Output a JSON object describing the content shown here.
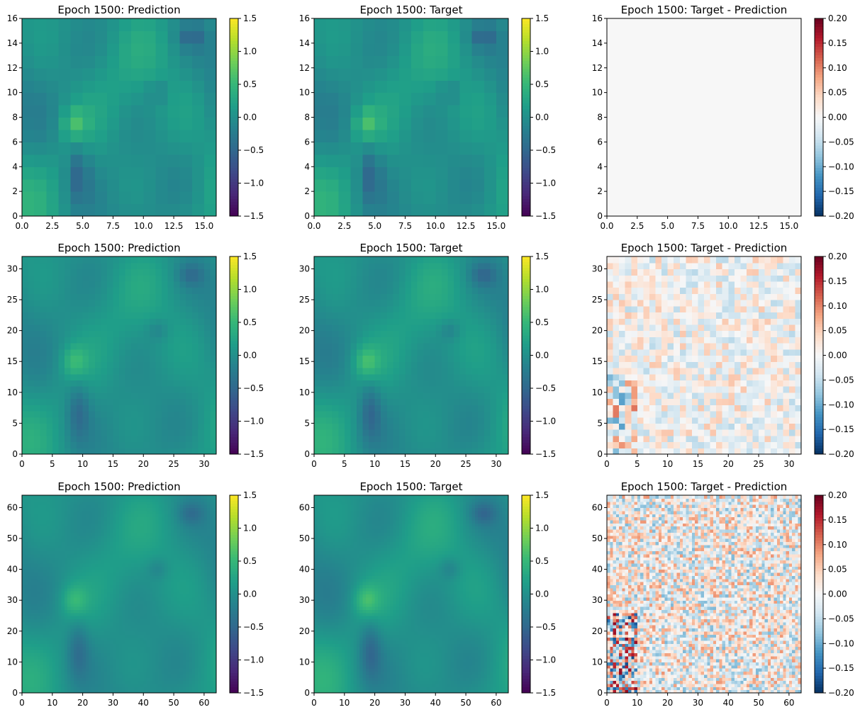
{
  "figure": {
    "colormaps": {
      "viridis": [
        "#440154",
        "#482878",
        "#3e4a89",
        "#31688e",
        "#26828e",
        "#1f9e89",
        "#35b779",
        "#6ece58",
        "#b5de2b",
        "#fde725"
      ],
      "rdbu_r": [
        "#053061",
        "#2166ac",
        "#4393c3",
        "#92c5de",
        "#d1e5f0",
        "#f7f7f7",
        "#fddbc7",
        "#f4a582",
        "#d6604d",
        "#b2182b",
        "#67001f"
      ]
    }
  },
  "chart_data": [
    {
      "type": "heatmap",
      "title": "Epoch 1500: Prediction",
      "grid_size": 16,
      "xlim": [
        0,
        16
      ],
      "ylim": [
        0,
        16
      ],
      "xticks": [
        "0.0",
        "2.5",
        "5.0",
        "7.5",
        "10.0",
        "12.5",
        "15.0"
      ],
      "xtick_values": [
        0,
        2.5,
        5,
        7.5,
        10,
        12.5,
        15
      ],
      "yticks": [
        "0",
        "2",
        "4",
        "6",
        "8",
        "10",
        "12",
        "14",
        "16"
      ],
      "ytick_values": [
        0,
        2,
        4,
        6,
        8,
        10,
        12,
        14,
        16
      ],
      "colormap": "viridis",
      "vmin": -1.5,
      "vmax": 1.5,
      "colorbar_ticks": [
        "1.5",
        "1.0",
        "0.5",
        "0.0",
        "−0.5",
        "−1.0",
        "−1.5"
      ],
      "colorbar_values": [
        1.5,
        1.0,
        0.5,
        0.0,
        -0.5,
        -1.0,
        -1.5
      ],
      "field": "field",
      "value_scale": 1,
      "smooth": false
    },
    {
      "type": "heatmap",
      "title": "Epoch 1500: Target",
      "grid_size": 16,
      "xlim": [
        0,
        16
      ],
      "ylim": [
        0,
        16
      ],
      "xticks": [
        "0.0",
        "2.5",
        "5.0",
        "7.5",
        "10.0",
        "12.5",
        "15.0"
      ],
      "xtick_values": [
        0,
        2.5,
        5,
        7.5,
        10,
        12.5,
        15
      ],
      "yticks": [
        "0",
        "2",
        "4",
        "6",
        "8",
        "10",
        "12",
        "14",
        "16"
      ],
      "ytick_values": [
        0,
        2,
        4,
        6,
        8,
        10,
        12,
        14,
        16
      ],
      "colormap": "viridis",
      "vmin": -1.5,
      "vmax": 1.5,
      "colorbar_ticks": [
        "1.5",
        "1.0",
        "0.5",
        "0.0",
        "−0.5",
        "−1.0",
        "−1.5"
      ],
      "colorbar_values": [
        1.5,
        1.0,
        0.5,
        0.0,
        -0.5,
        -1.0,
        -1.5
      ],
      "field": "field",
      "value_scale": 1,
      "smooth": false
    },
    {
      "type": "heatmap",
      "title": "Epoch 1500: Target - Prediction",
      "grid_size": 16,
      "xlim": [
        0,
        16
      ],
      "ylim": [
        0,
        16
      ],
      "xticks": [
        "0.0",
        "2.5",
        "5.0",
        "7.5",
        "10.0",
        "12.5",
        "15.0"
      ],
      "xtick_values": [
        0,
        2.5,
        5,
        7.5,
        10,
        12.5,
        15
      ],
      "yticks": [
        "0",
        "2",
        "4",
        "6",
        "8",
        "10",
        "12",
        "14",
        "16"
      ],
      "ytick_values": [
        0,
        2,
        4,
        6,
        8,
        10,
        12,
        14,
        16
      ],
      "colormap": "rdbu_r",
      "vmin": -0.2,
      "vmax": 0.2,
      "colorbar_ticks": [
        "0.20",
        "0.15",
        "0.10",
        "0.05",
        "0.00",
        "−0.05",
        "−0.10",
        "−0.15",
        "−0.20"
      ],
      "colorbar_values": [
        0.2,
        0.15,
        0.1,
        0.05,
        0.0,
        -0.05,
        -0.1,
        -0.15,
        -0.2
      ],
      "field": "flat",
      "value_scale": 0,
      "smooth": false
    },
    {
      "type": "heatmap",
      "title": "Epoch 1500: Prediction",
      "grid_size": 32,
      "xlim": [
        0,
        32
      ],
      "ylim": [
        0,
        32
      ],
      "xticks": [
        "0",
        "5",
        "10",
        "15",
        "20",
        "25",
        "30"
      ],
      "xtick_values": [
        0,
        5,
        10,
        15,
        20,
        25,
        30
      ],
      "yticks": [
        "0",
        "5",
        "10",
        "15",
        "20",
        "25",
        "30"
      ],
      "ytick_values": [
        0,
        5,
        10,
        15,
        20,
        25,
        30
      ],
      "colormap": "viridis",
      "vmin": -1.5,
      "vmax": 1.5,
      "colorbar_ticks": [
        "1.5",
        "1.0",
        "0.5",
        "0.0",
        "−0.5",
        "−1.0",
        "−1.5"
      ],
      "colorbar_values": [
        1.5,
        1.0,
        0.5,
        0.0,
        -0.5,
        -1.0,
        -1.5
      ],
      "field": "field",
      "value_scale": 0.9,
      "smooth": true
    },
    {
      "type": "heatmap",
      "title": "Epoch 1500: Target",
      "grid_size": 32,
      "xlim": [
        0,
        32
      ],
      "ylim": [
        0,
        32
      ],
      "xticks": [
        "0",
        "5",
        "10",
        "15",
        "20",
        "25",
        "30"
      ],
      "xtick_values": [
        0,
        5,
        10,
        15,
        20,
        25,
        30
      ],
      "yticks": [
        "0",
        "5",
        "10",
        "15",
        "20",
        "25",
        "30"
      ],
      "ytick_values": [
        0,
        5,
        10,
        15,
        20,
        25,
        30
      ],
      "colormap": "viridis",
      "vmin": -1.5,
      "vmax": 1.5,
      "colorbar_ticks": [
        "1.5",
        "1.0",
        "0.5",
        "0.0",
        "−0.5",
        "−1.0",
        "−1.5"
      ],
      "colorbar_values": [
        1.5,
        1.0,
        0.5,
        0.0,
        -0.5,
        -1.0,
        -1.5
      ],
      "field": "field",
      "value_scale": 1,
      "smooth": true
    },
    {
      "type": "heatmap",
      "title": "Epoch 1500: Target - Prediction",
      "grid_size": 32,
      "xlim": [
        0,
        32
      ],
      "ylim": [
        0,
        32
      ],
      "xticks": [
        "0",
        "5",
        "10",
        "15",
        "20",
        "25",
        "30"
      ],
      "xtick_values": [
        0,
        5,
        10,
        15,
        20,
        25,
        30
      ],
      "yticks": [
        "0",
        "5",
        "10",
        "15",
        "20",
        "25",
        "30"
      ],
      "ytick_values": [
        0,
        5,
        10,
        15,
        20,
        25,
        30
      ],
      "colormap": "rdbu_r",
      "vmin": -0.2,
      "vmax": 0.2,
      "colorbar_ticks": [
        "0.20",
        "0.15",
        "0.10",
        "0.05",
        "0.00",
        "−0.05",
        "−0.10",
        "−0.15",
        "−0.20"
      ],
      "colorbar_values": [
        0.2,
        0.15,
        0.1,
        0.05,
        0.0,
        -0.05,
        -0.1,
        -0.15,
        -0.2
      ],
      "field": "noise",
      "value_scale": 0.055,
      "smooth": false
    },
    {
      "type": "heatmap",
      "title": "Epoch 1500: Prediction",
      "grid_size": 64,
      "xlim": [
        0,
        64
      ],
      "ylim": [
        0,
        64
      ],
      "xticks": [
        "0",
        "10",
        "20",
        "30",
        "40",
        "50",
        "60"
      ],
      "xtick_values": [
        0,
        10,
        20,
        30,
        40,
        50,
        60
      ],
      "yticks": [
        "0",
        "10",
        "20",
        "30",
        "40",
        "50",
        "60"
      ],
      "ytick_values": [
        0,
        10,
        20,
        30,
        40,
        50,
        60
      ],
      "colormap": "viridis",
      "vmin": -1.5,
      "vmax": 1.5,
      "colorbar_ticks": [
        "1.5",
        "1.0",
        "0.5",
        "0.0",
        "−0.5",
        "−1.0",
        "−1.5"
      ],
      "colorbar_values": [
        1.5,
        1.0,
        0.5,
        0.0,
        -0.5,
        -1.0,
        -1.5
      ],
      "field": "field",
      "value_scale": 0.85,
      "smooth": true
    },
    {
      "type": "heatmap",
      "title": "Epoch 1500: Target",
      "grid_size": 64,
      "xlim": [
        0,
        64
      ],
      "ylim": [
        0,
        64
      ],
      "xticks": [
        "0",
        "10",
        "20",
        "30",
        "40",
        "50",
        "60"
      ],
      "xtick_values": [
        0,
        10,
        20,
        30,
        40,
        50,
        60
      ],
      "yticks": [
        "0",
        "10",
        "20",
        "30",
        "40",
        "50",
        "60"
      ],
      "ytick_values": [
        0,
        10,
        20,
        30,
        40,
        50,
        60
      ],
      "colormap": "viridis",
      "vmin": -1.5,
      "vmax": 1.5,
      "colorbar_ticks": [
        "1.5",
        "1.0",
        "0.5",
        "0.0",
        "−0.5",
        "−1.0",
        "−1.5"
      ],
      "colorbar_values": [
        1.5,
        1.0,
        0.5,
        0.0,
        -0.5,
        -1.0,
        -1.5
      ],
      "field": "field",
      "value_scale": 1,
      "smooth": true
    },
    {
      "type": "heatmap",
      "title": "Epoch 1500: Target - Prediction",
      "grid_size": 64,
      "xlim": [
        0,
        64
      ],
      "ylim": [
        0,
        64
      ],
      "xticks": [
        "0",
        "10",
        "20",
        "30",
        "40",
        "50",
        "60"
      ],
      "xtick_values": [
        0,
        10,
        20,
        30,
        40,
        50,
        60
      ],
      "yticks": [
        "0",
        "10",
        "20",
        "30",
        "40",
        "50",
        "60"
      ],
      "ytick_values": [
        0,
        10,
        20,
        30,
        40,
        50,
        60
      ],
      "colormap": "rdbu_r",
      "vmin": -0.2,
      "vmax": 0.2,
      "colorbar_ticks": [
        "0.20",
        "0.15",
        "0.10",
        "0.05",
        "0.00",
        "−0.05",
        "−0.10",
        "−0.15",
        "−0.20"
      ],
      "colorbar_values": [
        0.2,
        0.15,
        0.1,
        0.05,
        0.0,
        -0.05,
        -0.1,
        -0.15,
        -0.2
      ],
      "field": "noise",
      "value_scale": 0.09,
      "smooth": false
    }
  ]
}
